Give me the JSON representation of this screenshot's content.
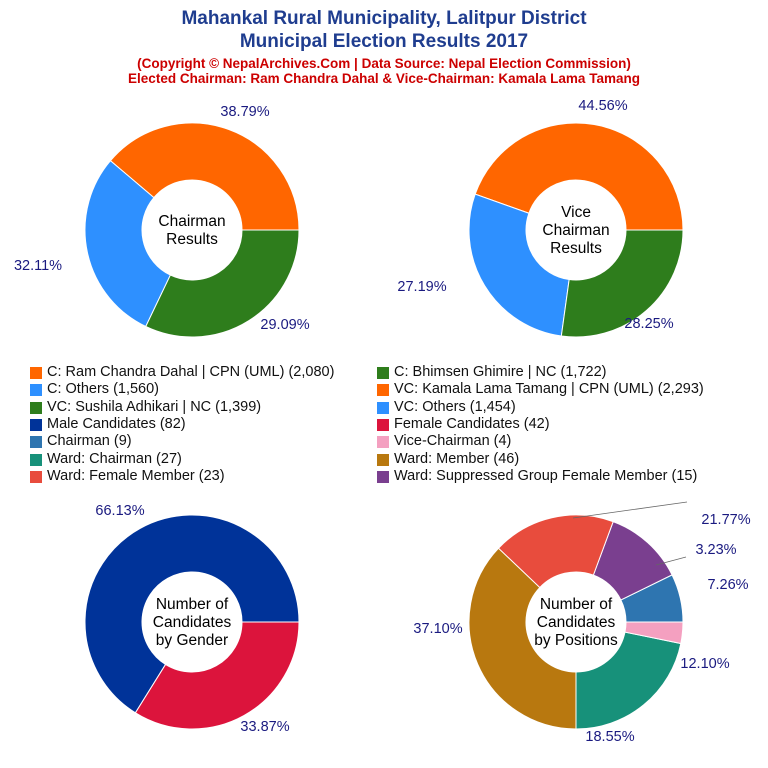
{
  "header": {
    "title_line1": "Mahankal Rural Municipality, Lalitpur District",
    "title_line2": "Municipal Election Results 2017",
    "subtitle_line1": "(Copyright © NepalArchives.Com | Data Source: Nepal Election Commission)",
    "subtitle_line2": "Elected Chairman: Ram Chandra Dahal & Vice-Chairman: Kamala Lama Tamang"
  },
  "legend": [
    {
      "label": "C: Ram Chandra Dahal | CPN (UML) (2,080)",
      "color": "#ff6600"
    },
    {
      "label": "C: Bhimsen Ghimire | NC (1,722)",
      "color": "#2e7d1c"
    },
    {
      "label": "C: Others (1,560)",
      "color": "#2e90ff"
    },
    {
      "label": "VC: Kamala Lama Tamang | CPN (UML) (2,293)",
      "color": "#ff6600"
    },
    {
      "label": "VC: Sushila Adhikari | NC (1,399)",
      "color": "#2e7d1c"
    },
    {
      "label": "VC: Others (1,454)",
      "color": "#2e90ff"
    },
    {
      "label": "Male Candidates (82)",
      "color": "#003399"
    },
    {
      "label": "Female Candidates (42)",
      "color": "#dc143c"
    },
    {
      "label": "Chairman (9)",
      "color": "#2e75b0"
    },
    {
      "label": "Vice-Chairman (4)",
      "color": "#f4a0c0"
    },
    {
      "label": "Ward: Chairman (27)",
      "color": "#17917a"
    },
    {
      "label": "Ward: Member (46)",
      "color": "#b8780f"
    },
    {
      "label": "Ward: Female Member (23)",
      "color": "#e84c3d"
    },
    {
      "label": "Ward: Suppressed Group Female Member (15)",
      "color": "#7a3f8f"
    }
  ],
  "chart_data": [
    {
      "type": "pie",
      "center_label": [
        "Chairman",
        "Results"
      ],
      "slices": [
        {
          "name": "C: Ram Chandra Dahal | CPN (UML)",
          "value": 2080,
          "label": "38.79%",
          "color": "#ff6600"
        },
        {
          "name": "C: Others",
          "value": 1560,
          "label": "29.09%",
          "color": "#2e90ff"
        },
        {
          "name": "C: Bhimsen Ghimire | NC",
          "value": 1722,
          "label": "32.11%",
          "color": "#2e7d1c"
        }
      ]
    },
    {
      "type": "pie",
      "center_label": [
        "Vice",
        "Chairman",
        "Results"
      ],
      "slices": [
        {
          "name": "VC: Kamala Lama Tamang | CPN (UML)",
          "value": 2293,
          "label": "44.56%",
          "color": "#ff6600"
        },
        {
          "name": "VC: Others",
          "value": 1454,
          "label": "28.25%",
          "color": "#2e90ff"
        },
        {
          "name": "VC: Sushila Adhikari | NC",
          "value": 1399,
          "label": "27.19%",
          "color": "#2e7d1c"
        }
      ]
    },
    {
      "type": "pie",
      "center_label": [
        "Number of",
        "Candidates",
        "by Gender"
      ],
      "slices": [
        {
          "name": "Male Candidates",
          "value": 82,
          "label": "66.13%",
          "color": "#003399"
        },
        {
          "name": "Female Candidates",
          "value": 42,
          "label": "33.87%",
          "color": "#dc143c"
        }
      ]
    },
    {
      "type": "pie",
      "center_label": [
        "Number of",
        "Candidates",
        "by Positions"
      ],
      "slices": [
        {
          "name": "Chairman",
          "value": 9,
          "label": "7.26%",
          "color": "#2e75b0"
        },
        {
          "name": "Ward: Suppressed Group Female Member",
          "value": 15,
          "label": "12.10%",
          "color": "#7a3f8f"
        },
        {
          "name": "Ward: Female Member",
          "value": 23,
          "label": "18.55%",
          "color": "#e84c3d"
        },
        {
          "name": "Ward: Member",
          "value": 46,
          "label": "37.10%",
          "color": "#b8780f"
        },
        {
          "name": "Ward: Chairman",
          "value": 27,
          "label": "21.77%",
          "color": "#17917a"
        },
        {
          "name": "Vice-Chairman",
          "value": 4,
          "label": "3.23%",
          "color": "#f4a0c0"
        }
      ]
    }
  ]
}
